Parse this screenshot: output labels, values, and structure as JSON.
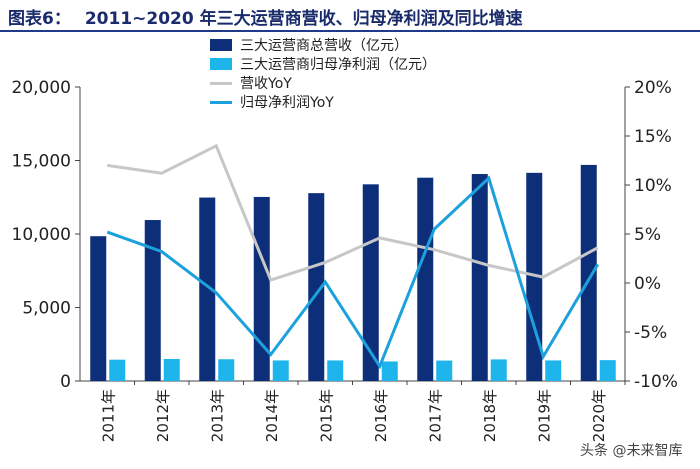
{
  "header": {
    "figure_label": "图表6：",
    "title": "2011~2020 年三大运营商营收、归母净利润及同比增速"
  },
  "watermark": "头条 @未来智库",
  "colors": {
    "revenue_bar": "#0d2f7a",
    "profit_bar": "#1eb4ec",
    "revenue_yoy_line": "#c7c7c7",
    "profit_yoy_line": "#1da1dd",
    "axis": "#444444",
    "title": "#1a2b6b"
  },
  "chart_data": {
    "type": "bar",
    "title": "2011~2020 年三大运营商营收、归母净利润及同比增速",
    "categories": [
      "2011年",
      "2012年",
      "2013年",
      "2014年",
      "2015年",
      "2016年",
      "2017年",
      "2018年",
      "2019年",
      "2020年"
    ],
    "series": [
      {
        "name": "三大运营商总营收（亿元）",
        "type": "bar",
        "axis": "left",
        "values": [
          9850,
          10950,
          12480,
          12520,
          12780,
          13380,
          13830,
          14080,
          14160,
          14700
        ]
      },
      {
        "name": "三大运营商归母净利润（亿元）",
        "type": "bar",
        "axis": "left",
        "values": [
          1450,
          1500,
          1480,
          1400,
          1400,
          1330,
          1390,
          1470,
          1400,
          1420
        ]
      },
      {
        "name": "营收YoY",
        "type": "line",
        "axis": "right",
        "values": [
          12.0,
          11.2,
          14.0,
          0.3,
          2.1,
          4.6,
          3.4,
          1.8,
          0.6,
          3.6
        ]
      },
      {
        "name": "归母净利润YoY",
        "type": "line",
        "axis": "right",
        "values": [
          5.2,
          3.2,
          -1.0,
          -7.3,
          0.1,
          -8.5,
          5.5,
          10.7,
          -7.5,
          1.9
        ]
      }
    ],
    "y_left": {
      "ylim": [
        0,
        20000
      ],
      "ticks": [
        "20,000",
        "15,000",
        "10,000",
        "5,000",
        "0"
      ],
      "tick_values": [
        20000,
        15000,
        10000,
        5000,
        0
      ]
    },
    "y_right": {
      "ylim": [
        -10,
        20
      ],
      "ticks": [
        "20%",
        "15%",
        "10%",
        "5%",
        "0%",
        "-5%",
        "-10%"
      ],
      "tick_values": [
        20,
        15,
        10,
        5,
        0,
        -5,
        -10
      ]
    },
    "grid": false,
    "legend_position": "top-center"
  }
}
